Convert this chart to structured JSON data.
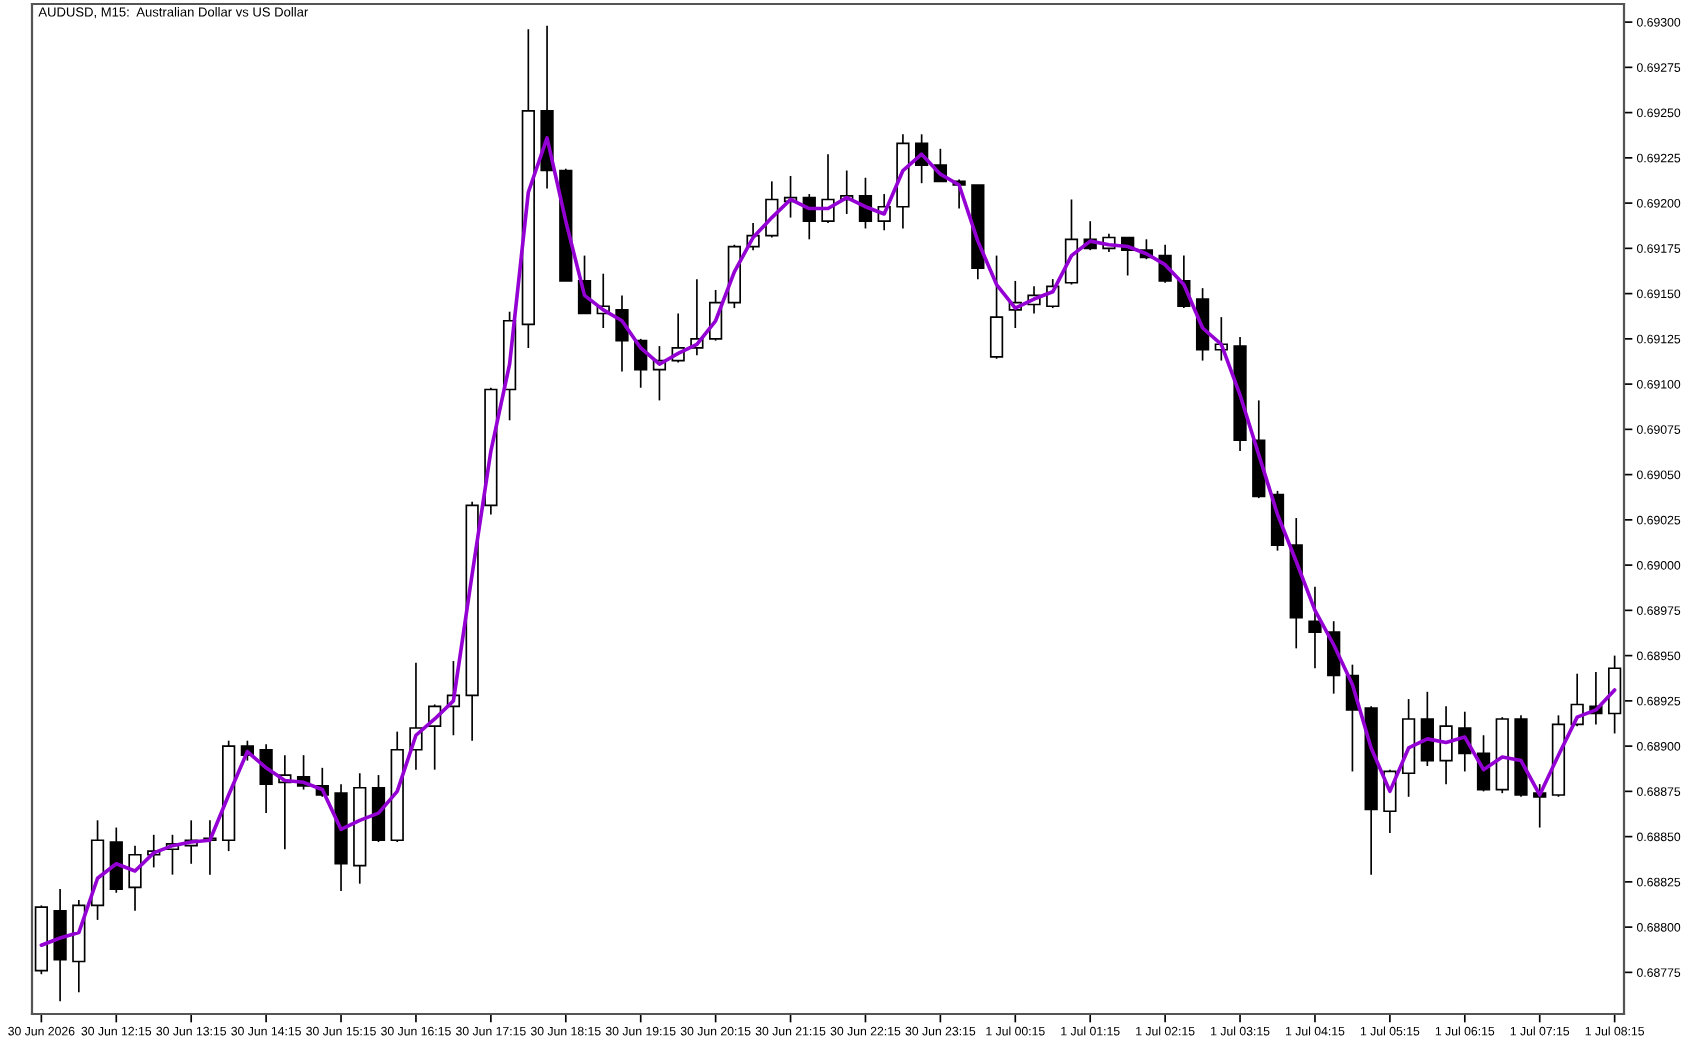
{
  "chart_data": {
    "type": "candlestick",
    "title": "AUDUSD, M15:  Australian Dollar vs US Dollar",
    "categories": [
      "30 Jun 2026",
      null,
      null,
      null,
      "30 Jun 12:15",
      null,
      null,
      null,
      "30 Jun 13:15",
      null,
      null,
      null,
      "30 Jun 14:15",
      null,
      null,
      null,
      "30 Jun 15:15",
      null,
      null,
      null,
      "30 Jun 16:15",
      null,
      null,
      null,
      "30 Jun 17:15",
      null,
      null,
      null,
      "30 Jun 18:15",
      null,
      null,
      null,
      "30 Jun 19:15",
      null,
      null,
      null,
      "30 Jun 20:15",
      null,
      null,
      null,
      "30 Jun 21:15",
      null,
      null,
      null,
      "30 Jun 22:15",
      null,
      null,
      null,
      "30 Jun 23:15",
      null,
      null,
      null,
      "1 Jul 00:15",
      null,
      null,
      null,
      "1 Jul 01:15",
      null,
      null,
      null,
      "1 Jul 02:15",
      null,
      null,
      null,
      "1 Jul 03:15",
      null,
      null,
      null,
      "1 Jul 04:15",
      null,
      null,
      null,
      "1 Jul 05:15",
      null,
      null,
      null,
      "1 Jul 06:15",
      null,
      null,
      null,
      "1 Jul 07:15",
      null,
      null,
      null,
      "1 Jul 08:15"
    ],
    "ohlc": [
      [
        0.68776,
        0.68812,
        0.68774,
        0.68811
      ],
      [
        0.68809,
        0.68821,
        0.68759,
        0.68782
      ],
      [
        0.68781,
        0.68815,
        0.68764,
        0.68812
      ],
      [
        0.68812,
        0.68859,
        0.68804,
        0.68848
      ],
      [
        0.68847,
        0.68855,
        0.68819,
        0.68821
      ],
      [
        0.68822,
        0.68845,
        0.68809,
        0.6884
      ],
      [
        0.6884,
        0.68851,
        0.68833,
        0.68842
      ],
      [
        0.68843,
        0.68851,
        0.68829,
        0.68846
      ],
      [
        0.68845,
        0.68859,
        0.68835,
        0.68848
      ],
      [
        0.68848,
        0.68859,
        0.68829,
        0.68849
      ],
      [
        0.68848,
        0.68903,
        0.68842,
        0.689
      ],
      [
        0.689,
        0.68903,
        0.68892,
        0.68895
      ],
      [
        0.68898,
        0.68901,
        0.68863,
        0.68879
      ],
      [
        0.6888,
        0.68895,
        0.68843,
        0.68884
      ],
      [
        0.68883,
        0.68895,
        0.68876,
        0.68878
      ],
      [
        0.68878,
        0.68888,
        0.68872,
        0.68873
      ],
      [
        0.68874,
        0.68879,
        0.6882,
        0.68835
      ],
      [
        0.68834,
        0.68885,
        0.68824,
        0.68877
      ],
      [
        0.68877,
        0.68884,
        0.68847,
        0.68848
      ],
      [
        0.68848,
        0.68908,
        0.68847,
        0.68898
      ],
      [
        0.68898,
        0.68946,
        0.68887,
        0.6891
      ],
      [
        0.68911,
        0.68923,
        0.68887,
        0.68922
      ],
      [
        0.68922,
        0.68947,
        0.68906,
        0.68928
      ],
      [
        0.68928,
        0.69035,
        0.68903,
        0.69033
      ],
      [
        0.69033,
        0.69098,
        0.69028,
        0.69097
      ],
      [
        0.69097,
        0.6914,
        0.6908,
        0.69135
      ],
      [
        0.69133,
        0.69296,
        0.6912,
        0.69251
      ],
      [
        0.69251,
        0.69298,
        0.69208,
        0.69218
      ],
      [
        0.69218,
        0.69219,
        0.69157,
        0.69157
      ],
      [
        0.69157,
        0.69171,
        0.69139,
        0.69139
      ],
      [
        0.69139,
        0.69161,
        0.69131,
        0.69143
      ],
      [
        0.69141,
        0.69149,
        0.69107,
        0.69124
      ],
      [
        0.69124,
        0.69125,
        0.69098,
        0.69108
      ],
      [
        0.69108,
        0.69121,
        0.69091,
        0.69113
      ],
      [
        0.69113,
        0.69139,
        0.69112,
        0.6912
      ],
      [
        0.6912,
        0.69158,
        0.69116,
        0.69125
      ],
      [
        0.69125,
        0.69152,
        0.69124,
        0.69145
      ],
      [
        0.69145,
        0.69177,
        0.69142,
        0.69176
      ],
      [
        0.69176,
        0.69189,
        0.69174,
        0.69182
      ],
      [
        0.69182,
        0.69212,
        0.69181,
        0.69202
      ],
      [
        0.69201,
        0.69215,
        0.69192,
        0.69203
      ],
      [
        0.69203,
        0.69205,
        0.6918,
        0.6919
      ],
      [
        0.6919,
        0.69227,
        0.69189,
        0.69202
      ],
      [
        0.69202,
        0.69218,
        0.69194,
        0.69204
      ],
      [
        0.69204,
        0.69214,
        0.69186,
        0.6919
      ],
      [
        0.6919,
        0.69205,
        0.69185,
        0.69198
      ],
      [
        0.69198,
        0.69238,
        0.69186,
        0.69233
      ],
      [
        0.69233,
        0.69238,
        0.69211,
        0.69221
      ],
      [
        0.69221,
        0.6923,
        0.69212,
        0.69212
      ],
      [
        0.69212,
        0.69213,
        0.69197,
        0.6921
      ],
      [
        0.6921,
        0.6921,
        0.69158,
        0.69164
      ],
      [
        0.69115,
        0.69171,
        0.69114,
        0.69137
      ],
      [
        0.69141,
        0.69157,
        0.69131,
        0.69145
      ],
      [
        0.69144,
        0.69154,
        0.69139,
        0.69149
      ],
      [
        0.69143,
        0.69158,
        0.69142,
        0.69154
      ],
      [
        0.69156,
        0.69202,
        0.69155,
        0.6918
      ],
      [
        0.6918,
        0.6919,
        0.69174,
        0.69175
      ],
      [
        0.69175,
        0.69183,
        0.69173,
        0.69181
      ],
      [
        0.69181,
        0.69181,
        0.6916,
        0.69174
      ],
      [
        0.69174,
        0.6918,
        0.69169,
        0.6917
      ],
      [
        0.69171,
        0.69177,
        0.69156,
        0.69157
      ],
      [
        0.69157,
        0.69171,
        0.69142,
        0.69143
      ],
      [
        0.69147,
        0.69153,
        0.69113,
        0.69119
      ],
      [
        0.69119,
        0.69137,
        0.69113,
        0.69122
      ],
      [
        0.69121,
        0.69126,
        0.69063,
        0.69069
      ],
      [
        0.69069,
        0.69091,
        0.69037,
        0.69038
      ],
      [
        0.69039,
        0.69041,
        0.69008,
        0.69011
      ],
      [
        0.69011,
        0.69026,
        0.68954,
        0.68971
      ],
      [
        0.68969,
        0.68988,
        0.68943,
        0.68963
      ],
      [
        0.68963,
        0.68969,
        0.68929,
        0.68939
      ],
      [
        0.68939,
        0.68945,
        0.68886,
        0.6892
      ],
      [
        0.68921,
        0.68922,
        0.68829,
        0.68865
      ],
      [
        0.68864,
        0.68887,
        0.68852,
        0.68886
      ],
      [
        0.68885,
        0.68926,
        0.68872,
        0.68915
      ],
      [
        0.68915,
        0.6893,
        0.68889,
        0.68892
      ],
      [
        0.68892,
        0.68922,
        0.68879,
        0.68911
      ],
      [
        0.6891,
        0.68919,
        0.68886,
        0.68896
      ],
      [
        0.68896,
        0.68906,
        0.68875,
        0.68876
      ],
      [
        0.68876,
        0.68916,
        0.68874,
        0.68915
      ],
      [
        0.68915,
        0.68917,
        0.68872,
        0.68873
      ],
      [
        0.68874,
        0.68879,
        0.68855,
        0.68872
      ],
      [
        0.68873,
        0.68917,
        0.68872,
        0.68912
      ],
      [
        0.68912,
        0.6894,
        0.68911,
        0.68923
      ],
      [
        0.68922,
        0.68941,
        0.68912,
        0.68918
      ],
      [
        0.68918,
        0.6895,
        0.68907,
        0.68943
      ]
    ],
    "series": [
      {
        "type": "line",
        "color": "#9400d3",
        "values": [
          0.6879,
          0.68794,
          0.68797,
          0.68827,
          0.68835,
          0.68831,
          0.68841,
          0.68845,
          0.68847,
          0.68848,
          0.68873,
          0.68897,
          0.68888,
          0.68881,
          0.6888,
          0.68876,
          0.68854,
          0.68859,
          0.68863,
          0.68875,
          0.68906,
          0.68915,
          0.68925,
          0.68995,
          0.69063,
          0.69111,
          0.69206,
          0.69236,
          0.6919,
          0.69149,
          0.69141,
          0.69135,
          0.6912,
          0.69111,
          0.69117,
          0.69122,
          0.69135,
          0.69162,
          0.69181,
          0.69192,
          0.69202,
          0.69197,
          0.69197,
          0.69203,
          0.69198,
          0.69194,
          0.69218,
          0.69227,
          0.69216,
          0.6921,
          0.69179,
          0.69155,
          0.69142,
          0.69147,
          0.69151,
          0.69171,
          0.69179,
          0.69177,
          0.69176,
          0.69172,
          0.69166,
          0.69155,
          0.69131,
          0.69122,
          0.69094,
          0.69061,
          0.69028,
          0.69002,
          0.68975,
          0.68956,
          0.68934,
          0.68899,
          0.68875,
          0.68899,
          0.68904,
          0.68902,
          0.68905,
          0.68887,
          0.68894,
          0.68892,
          0.68873,
          0.68895,
          0.68916,
          0.6892,
          0.68931
        ]
      }
    ],
    "ylim": [
      0.68752,
      0.6931
    ],
    "yticks": [
      {
        "value": 0.68775,
        "label": "0.68775"
      },
      {
        "value": 0.688,
        "label": "0.68800"
      },
      {
        "value": 0.68825,
        "label": "0.68825"
      },
      {
        "value": 0.6885,
        "label": "0.68850"
      },
      {
        "value": 0.68875,
        "label": "0.68875"
      },
      {
        "value": 0.689,
        "label": "0.68900"
      },
      {
        "value": 0.68925,
        "label": "0.68925"
      },
      {
        "value": 0.6895,
        "label": "0.68950"
      },
      {
        "value": 0.68975,
        "label": "0.68975"
      },
      {
        "value": 0.69,
        "label": "0.69000"
      },
      {
        "value": 0.69025,
        "label": "0.69025"
      },
      {
        "value": 0.6905,
        "label": "0.69050"
      },
      {
        "value": 0.69075,
        "label": "0.69075"
      },
      {
        "value": 0.691,
        "label": "0.69100"
      },
      {
        "value": 0.69125,
        "label": "0.69125"
      },
      {
        "value": 0.6915,
        "label": "0.69150"
      },
      {
        "value": 0.69175,
        "label": "0.69175"
      },
      {
        "value": 0.692,
        "label": "0.69200"
      },
      {
        "value": 0.69225,
        "label": "0.69225"
      },
      {
        "value": 0.6925,
        "label": "0.69250"
      },
      {
        "value": 0.69275,
        "label": "0.69275"
      },
      {
        "value": 0.693,
        "label": "0.69300"
      }
    ],
    "grid": false
  }
}
